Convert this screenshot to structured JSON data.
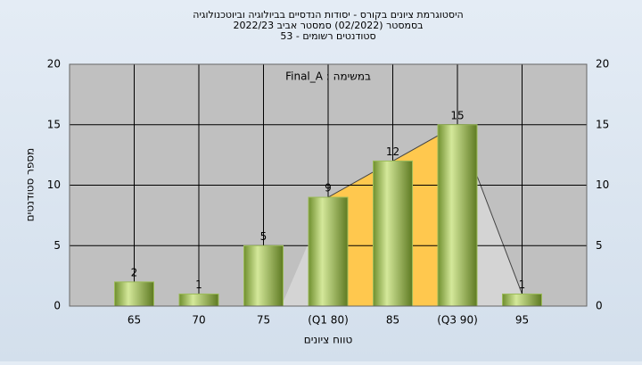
{
  "chart_data": {
    "type": "bar",
    "title": [
      "היסטוגרמת ציונים בקורס - יסודות הנדסיים בביולוגיה וביוטכנולוגיה",
      "בסמסטר (02/2022) סמסטר אביב 2022/23",
      "סטודנטים רשומים - 53"
    ],
    "annotation": "במשימה : Final_A",
    "x_label": "טווח ציונים",
    "y_label": "מספר סטודנטים",
    "categories": [
      "65",
      "70",
      "75",
      "(Q1 80)",
      "85",
      "(Q3 90)",
      "95"
    ],
    "values": [
      2,
      1,
      5,
      9,
      12,
      15,
      1
    ],
    "color": "#9bbb59",
    "ylim": [
      0,
      20
    ],
    "yticks": [
      0,
      5,
      10,
      15,
      20
    ],
    "grid": true
  }
}
